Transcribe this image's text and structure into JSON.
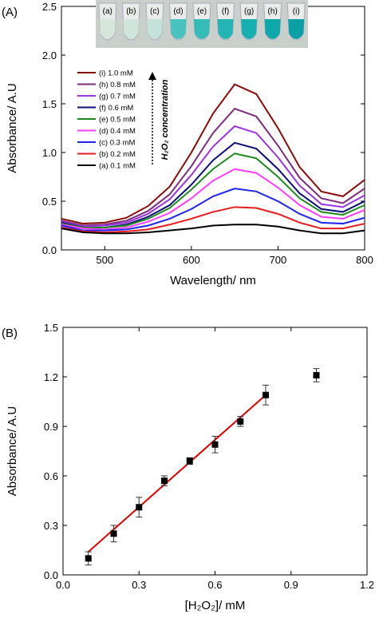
{
  "chart_data": [
    {
      "type": "line",
      "panel_label": "(A)",
      "x_label": "Wavelength/ nm",
      "y_label": "Absorbance/ A.U",
      "annotation": "H₂O₂ concentration",
      "image_labels": [
        "(a)",
        "(b)",
        "(c)",
        "(d)",
        "(e)",
        "(f)",
        "(g)",
        "(h)",
        "(i)"
      ],
      "x": [
        450,
        475,
        500,
        525,
        550,
        575,
        600,
        625,
        650,
        675,
        700,
        725,
        750,
        775,
        800
      ],
      "series": [
        {
          "name": "(i) 1.0 mM",
          "color": "#8b0a0a",
          "values": [
            0.32,
            0.27,
            0.28,
            0.33,
            0.45,
            0.65,
            1.0,
            1.4,
            1.7,
            1.6,
            1.25,
            0.85,
            0.6,
            0.55,
            0.72
          ]
        },
        {
          "name": "(h) 0.8 mM",
          "color": "#7b2d7b",
          "values": [
            0.3,
            0.25,
            0.26,
            0.3,
            0.4,
            0.57,
            0.86,
            1.2,
            1.45,
            1.37,
            1.07,
            0.74,
            0.53,
            0.48,
            0.63
          ]
        },
        {
          "name": "(g) 0.7 mM",
          "color": "#9a32e6",
          "values": [
            0.29,
            0.24,
            0.25,
            0.28,
            0.37,
            0.52,
            0.77,
            1.06,
            1.27,
            1.2,
            0.95,
            0.66,
            0.47,
            0.44,
            0.56
          ]
        },
        {
          "name": "(f) 0.6 mM",
          "color": "#0d0d7a",
          "values": [
            0.28,
            0.23,
            0.23,
            0.26,
            0.34,
            0.46,
            0.67,
            0.92,
            1.1,
            1.04,
            0.83,
            0.58,
            0.42,
            0.39,
            0.5
          ]
        },
        {
          "name": "(e) 0.5 mM",
          "color": "#1e8a1e",
          "values": [
            0.27,
            0.23,
            0.23,
            0.25,
            0.32,
            0.43,
            0.62,
            0.83,
            0.99,
            0.94,
            0.75,
            0.53,
            0.39,
            0.36,
            0.46
          ]
        },
        {
          "name": "(d) 0.4 mM",
          "color": "#ff3dff",
          "values": [
            0.26,
            0.22,
            0.21,
            0.23,
            0.29,
            0.38,
            0.53,
            0.71,
            0.83,
            0.79,
            0.64,
            0.46,
            0.34,
            0.32,
            0.41
          ]
        },
        {
          "name": "(c) 0.3 mM",
          "color": "#1f24ee",
          "values": [
            0.25,
            0.2,
            0.2,
            0.21,
            0.25,
            0.32,
            0.42,
            0.55,
            0.63,
            0.6,
            0.5,
            0.37,
            0.28,
            0.27,
            0.33
          ]
        },
        {
          "name": "(b) 0.2 mM",
          "color": "#e81c1c",
          "values": [
            0.23,
            0.19,
            0.18,
            0.19,
            0.21,
            0.26,
            0.32,
            0.39,
            0.44,
            0.43,
            0.37,
            0.28,
            0.22,
            0.22,
            0.27
          ]
        },
        {
          "name": "(a) 0.1 mM",
          "color": "#000000",
          "values": [
            0.22,
            0.18,
            0.17,
            0.17,
            0.18,
            0.2,
            0.22,
            0.25,
            0.26,
            0.26,
            0.24,
            0.2,
            0.17,
            0.17,
            0.2
          ]
        }
      ],
      "xlim": [
        450,
        800
      ],
      "xticks": [
        500,
        600,
        700,
        800
      ],
      "ylim": [
        0,
        2.5
      ],
      "yticks": [
        {
          "value": 0,
          "label": "0.0"
        },
        0.5,
        {
          "value": 1,
          "label": "1.0"
        },
        1.5,
        {
          "value": 2,
          "label": "2.0"
        },
        2.5
      ]
    },
    {
      "type": "scatter",
      "panel_label": "(B)",
      "x_label": "[H₂O₂]/ mM",
      "y_label": "Absorbance/ A.U",
      "x": [
        0.1,
        0.2,
        0.3,
        0.4,
        0.5,
        0.6,
        0.7,
        0.8,
        1.0
      ],
      "values": [
        0.1,
        0.25,
        0.41,
        0.57,
        0.69,
        0.79,
        0.93,
        1.09,
        1.21
      ],
      "errors": [
        0.04,
        0.05,
        0.06,
        0.03,
        0.02,
        0.05,
        0.03,
        0.06,
        0.04
      ],
      "color": "#000000",
      "fit": {
        "x": [
          0.1,
          0.8
        ],
        "y": [
          0.14,
          1.09
        ],
        "color": "#e00000"
      },
      "xlim": [
        0,
        1.2
      ],
      "xticks": [
        {
          "value": 0,
          "label": "0.0"
        },
        0.3,
        0.6,
        0.9,
        1.2
      ],
      "ylim": [
        0,
        1.5
      ],
      "yticks": [
        {
          "value": 0,
          "label": "0.0"
        },
        0.3,
        0.6,
        0.9,
        1.2,
        1.5
      ]
    }
  ]
}
